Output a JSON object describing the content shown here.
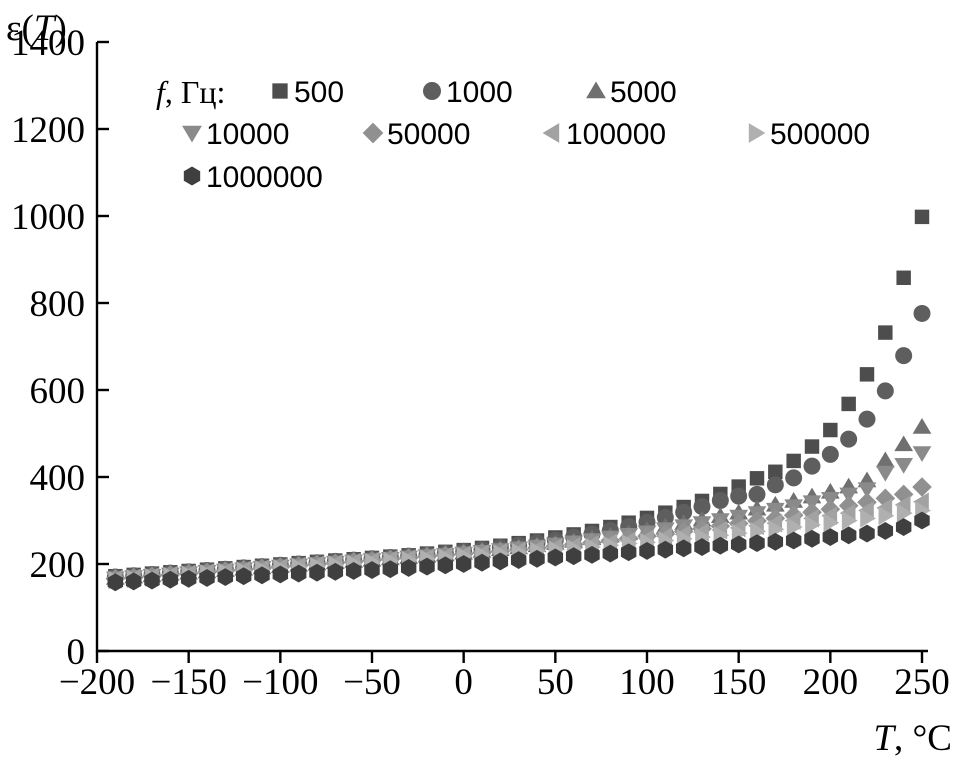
{
  "chart_data": {
    "type": "scatter",
    "x_label_var": "T",
    "x_label_unit": ", °C",
    "y_label_fn": "ε(",
    "y_label_var": "T",
    "y_label_end": ")",
    "xlim": [
      -200,
      250
    ],
    "ylim": [
      0,
      1400
    ],
    "x_ticks": [
      -200,
      -150,
      -100,
      -50,
      0,
      50,
      100,
      150,
      200,
      250
    ],
    "x_tick_labels": [
      "−200",
      "−150",
      "−100",
      "−50",
      "0",
      "50",
      "100",
      "150",
      "200",
      "250"
    ],
    "y_ticks": [
      0,
      200,
      400,
      600,
      800,
      1000,
      1200,
      1400
    ],
    "y_tick_labels": [
      "0",
      "200",
      "400",
      "600",
      "800",
      "1000",
      "1200",
      "1400"
    ],
    "grid": false,
    "legend_title_var": "f",
    "legend_title_unit": ", Гц:",
    "legend_position": "top-left",
    "x": [
      -190,
      -180,
      -170,
      -160,
      -150,
      -140,
      -130,
      -120,
      -110,
      -100,
      -90,
      -80,
      -70,
      -60,
      -50,
      -40,
      -30,
      -20,
      -10,
      0,
      10,
      20,
      30,
      40,
      50,
      60,
      70,
      80,
      90,
      100,
      110,
      120,
      130,
      140,
      150,
      160,
      170,
      180,
      190,
      200,
      210,
      220,
      230,
      240,
      250
    ],
    "series": [
      {
        "name": "500",
        "marker": "square",
        "color": "#4d4d4d",
        "values": [
          172,
          175,
          178,
          181,
          184,
          187,
          190,
          193,
          196,
          199,
          202,
          205,
          208,
          211,
          214,
          217,
          220,
          224,
          228,
          232,
          237,
          242,
          248,
          254,
          261,
          268,
          276,
          285,
          295,
          306,
          318,
          331,
          345,
          361,
          378,
          397,
          412,
          437,
          470,
          508,
          568,
          636,
          732,
          858,
          998
        ]
      },
      {
        "name": "1000",
        "marker": "circle",
        "color": "#5e5e5e",
        "values": [
          170,
          173,
          176,
          179,
          182,
          185,
          188,
          191,
          194,
          197,
          200,
          203,
          206,
          209,
          212,
          215,
          218,
          221,
          225,
          229,
          233,
          238,
          243,
          249,
          255,
          262,
          269,
          277,
          286,
          296,
          307,
          319,
          332,
          346,
          356,
          360,
          382,
          398,
          425,
          452,
          487,
          533,
          598,
          679,
          776
        ]
      },
      {
        "name": "5000",
        "marker": "triangle-up",
        "color": "#707070",
        "values": [
          168,
          171,
          174,
          177,
          180,
          183,
          186,
          189,
          192,
          195,
          198,
          201,
          204,
          207,
          210,
          213,
          216,
          219,
          222,
          226,
          230,
          234,
          238,
          243,
          248,
          253,
          259,
          265,
          271,
          278,
          286,
          294,
          302,
          310,
          318,
          327,
          336,
          345,
          355,
          366,
          378,
          392,
          438,
          475,
          515
        ]
      },
      {
        "name": "10000",
        "marker": "triangle-down",
        "color": "#8a8a8a",
        "values": [
          167,
          170,
          173,
          176,
          179,
          182,
          185,
          188,
          191,
          194,
          197,
          200,
          203,
          206,
          209,
          212,
          215,
          218,
          221,
          224,
          228,
          232,
          236,
          240,
          245,
          250,
          255,
          261,
          267,
          273,
          280,
          287,
          294,
          301,
          309,
          317,
          325,
          333,
          342,
          350,
          360,
          372,
          410,
          428,
          455
        ]
      },
      {
        "name": "50000",
        "marker": "diamond",
        "color": "#909090",
        "values": [
          166,
          169,
          172,
          175,
          178,
          181,
          184,
          187,
          190,
          193,
          196,
          199,
          202,
          205,
          208,
          211,
          214,
          217,
          220,
          223,
          226,
          229,
          233,
          237,
          241,
          245,
          249,
          254,
          259,
          264,
          269,
          275,
          281,
          287,
          293,
          299,
          305,
          312,
          319,
          326,
          334,
          342,
          351,
          360,
          377
        ]
      },
      {
        "name": "100000",
        "marker": "triangle-left",
        "color": "#a2a2a2",
        "values": [
          165,
          168,
          171,
          174,
          177,
          180,
          183,
          186,
          189,
          192,
          195,
          198,
          201,
          204,
          207,
          210,
          212,
          215,
          218,
          221,
          224,
          227,
          230,
          234,
          238,
          241,
          245,
          249,
          253,
          258,
          263,
          268,
          273,
          278,
          283,
          288,
          294,
          300,
          305,
          311,
          317,
          323,
          329,
          336,
          343
        ]
      },
      {
        "name": "500000",
        "marker": "triangle-right",
        "color": "#b0b0b0",
        "values": [
          163,
          166,
          169,
          172,
          175,
          178,
          181,
          184,
          187,
          190,
          193,
          195,
          198,
          201,
          204,
          207,
          209,
          212,
          215,
          218,
          221,
          224,
          227,
          230,
          233,
          236,
          239,
          243,
          247,
          250,
          254,
          258,
          262,
          266,
          271,
          275,
          280,
          285,
          290,
          295,
          300,
          305,
          311,
          317,
          323
        ]
      },
      {
        "name": "1000000",
        "marker": "hexagon",
        "color": "#3f3f3f",
        "values": [
          158,
          160,
          162,
          164,
          166,
          168,
          170,
          172,
          174,
          176,
          178,
          180,
          182,
          184,
          186,
          188,
          191,
          194,
          197,
          200,
          203,
          206,
          209,
          212,
          215,
          218,
          221,
          224,
          227,
          230,
          233,
          236,
          239,
          242,
          245,
          248,
          251,
          254,
          258,
          262,
          266,
          270,
          276,
          285,
          300
        ]
      }
    ]
  }
}
